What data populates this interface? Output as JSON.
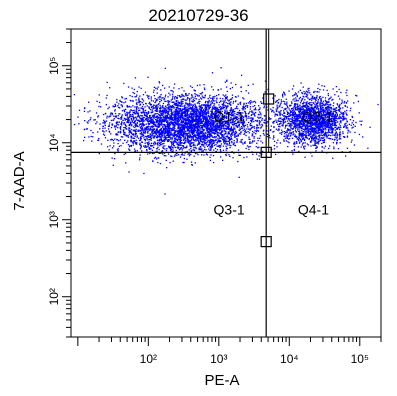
{
  "chart_data": {
    "type": "scatter",
    "title": "20210729-36",
    "xlabel": "PE-A",
    "ylabel": "7-AAD-A",
    "x_scale": "log",
    "y_scale": "log",
    "xlim": [
      8,
      200000
    ],
    "ylim": [
      30,
      300000
    ],
    "x_ticks": [
      {
        "value": 100,
        "label": "10²"
      },
      {
        "value": 1000,
        "label": "10³"
      },
      {
        "value": 10000,
        "label": "10⁴"
      },
      {
        "value": 100000,
        "label": "10⁵"
      }
    ],
    "y_ticks": [
      {
        "value": 100,
        "label": "10²"
      },
      {
        "value": 1000,
        "label": "10³"
      },
      {
        "value": 10000,
        "label": "10⁴"
      },
      {
        "value": 100000,
        "label": "10⁵"
      }
    ],
    "gate_x": 4700,
    "gate_y": 7500,
    "quadrants": [
      {
        "label": "Q1-1",
        "x": 1400,
        "y": 21000
      },
      {
        "label": "Q2-1",
        "x": 25000,
        "y": 21000
      },
      {
        "label": "Q3-1",
        "x": 1400,
        "y": 1300
      },
      {
        "label": "Q4-1",
        "x": 22000,
        "y": 1300
      }
    ],
    "handles": [
      {
        "x": 5100,
        "y": 37000
      },
      {
        "x": 4700,
        "y": 7500
      },
      {
        "x": 4700,
        "y": 520
      }
    ],
    "populations": [
      {
        "name": "",
        "cx": 350,
        "cy": 18000,
        "sx": 0.55,
        "sy": 0.19,
        "n": 4200
      },
      {
        "name": "",
        "cx": 22000,
        "cy": 20000,
        "sx": 0.24,
        "sy": 0.16,
        "n": 1800
      }
    ],
    "dot_color": "#0000ff",
    "grid": false,
    "legend": "none"
  }
}
